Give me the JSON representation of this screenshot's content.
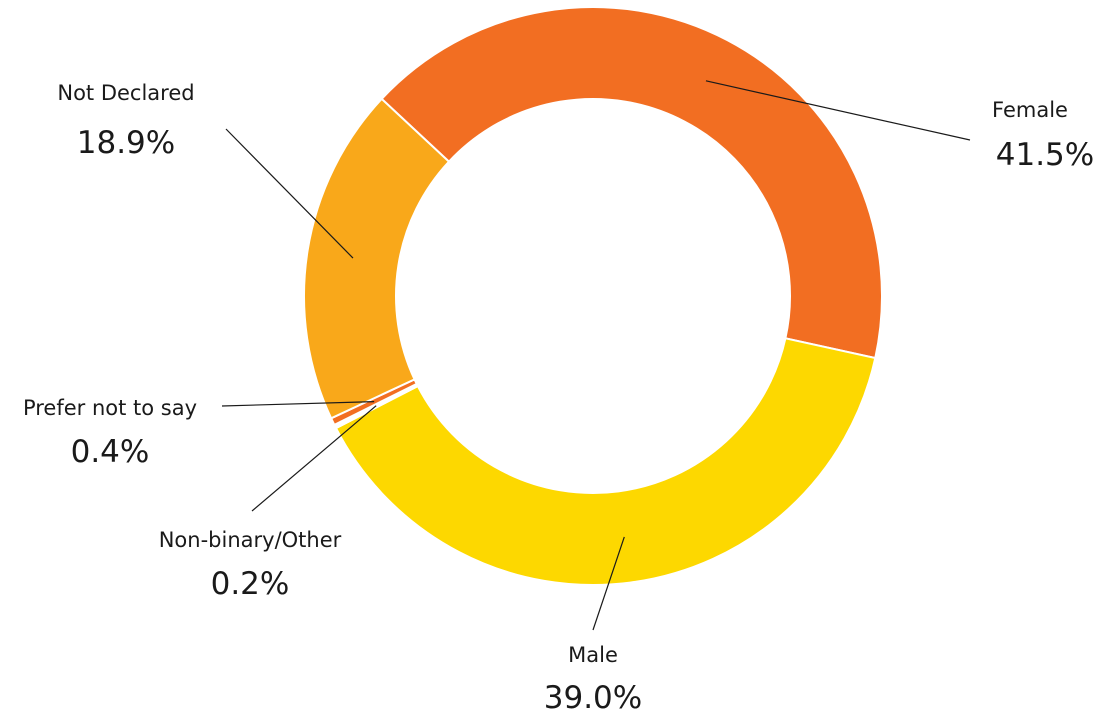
{
  "chart_data": {
    "type": "pie",
    "style": "donut",
    "slices": [
      {
        "label": "Female",
        "value_label": "41.5%",
        "value": 41.5,
        "color": "#F26E22"
      },
      {
        "label": "Male",
        "value_label": "39.0%",
        "value": 39.0,
        "color": "#FDD800"
      },
      {
        "label": "Non-binary/Other",
        "value_label": "0.2%",
        "value": 0.2,
        "color": "#FFFFFF"
      },
      {
        "label": "Prefer not to say",
        "value_label": "0.4%",
        "value": 0.4,
        "color": "#F26E22"
      },
      {
        "label": "Not Declared",
        "value_label": "18.9%",
        "value": 18.9,
        "color": "#F9A81A"
      }
    ]
  }
}
